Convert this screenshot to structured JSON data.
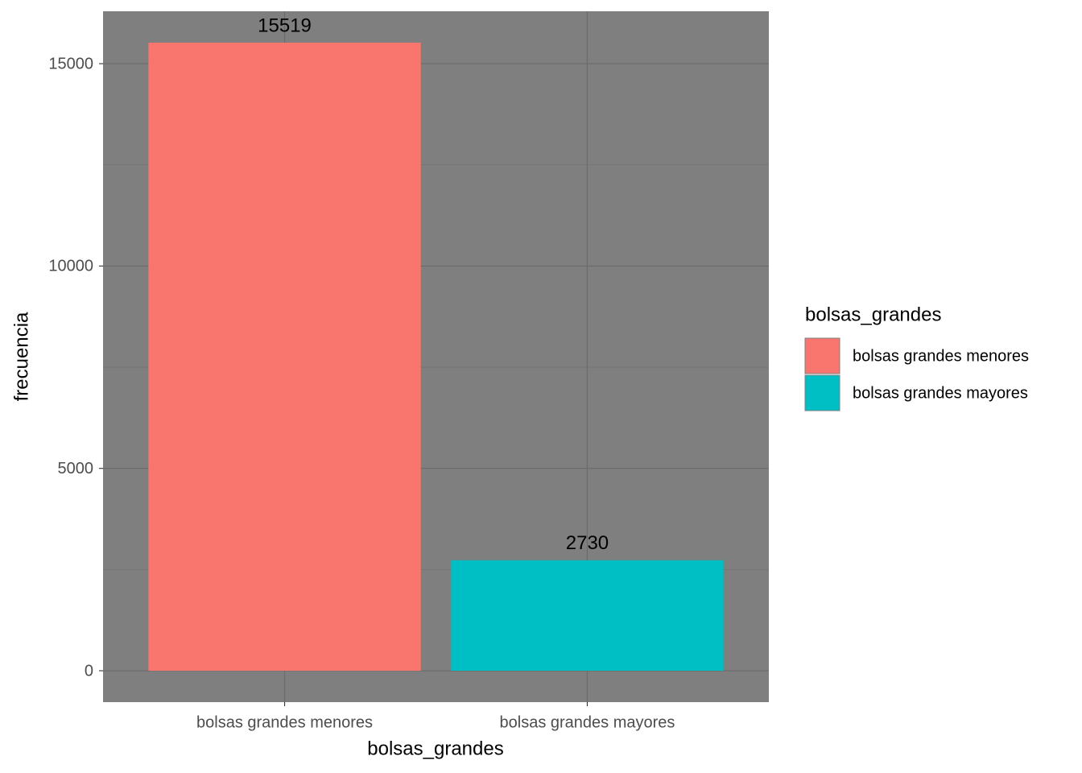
{
  "chart_data": {
    "type": "bar",
    "x_label": "bolsas_grandes",
    "y_label": "frecuencia",
    "categories": [
      "bolsas grandes  menores",
      "bolsas grandes mayores"
    ],
    "values": [
      15519,
      2730
    ],
    "colors": [
      "#f8766d",
      "#00bfc4"
    ],
    "ylim": [
      -776,
      16295
    ],
    "yticks": [
      0,
      5000,
      10000,
      15000
    ],
    "minor_yticks": [
      2500,
      7500,
      12500
    ],
    "grid": true,
    "data_labels": true,
    "legend": {
      "title": "bolsas_grandes",
      "position": "right"
    }
  }
}
